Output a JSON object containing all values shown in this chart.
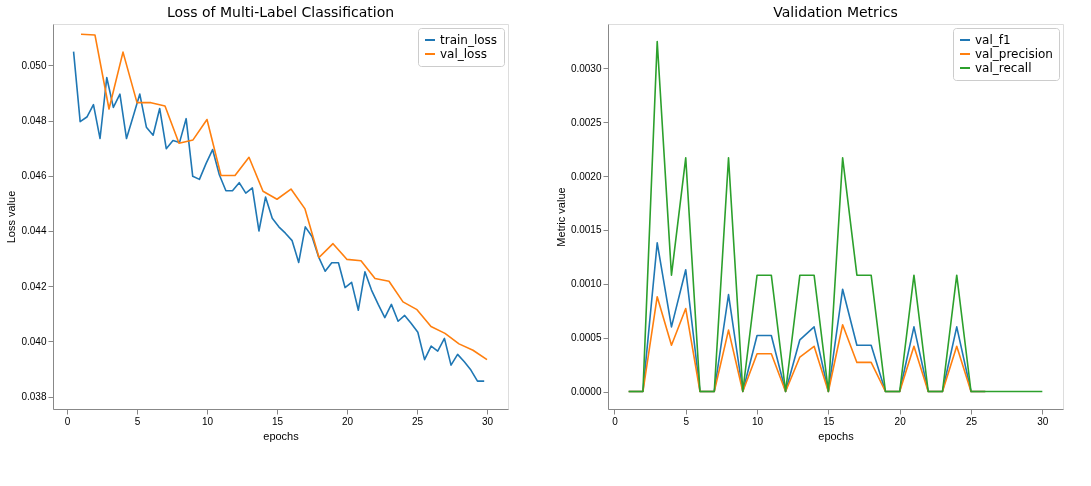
{
  "chart_data": [
    {
      "type": "line",
      "title": "Loss of Multi-Label Classification",
      "xlabel": "epochs",
      "ylabel": "Loss value",
      "xlim": [
        -1.0,
        31.5
      ],
      "xticks": [
        0,
        5,
        10,
        15,
        20,
        25,
        30
      ],
      "ylim": [
        0.03755,
        0.0515
      ],
      "yticks": [
        0.038,
        {
          "value": 0.04,
          "label": "0.040"
        },
        0.042,
        0.044,
        0.046,
        0.048,
        {
          "value": 0.05,
          "label": "0.050"
        }
      ],
      "grid": false,
      "legend": "top right",
      "line_style": "solid",
      "series": [
        {
          "name": "train_loss",
          "color": "#1f77b4",
          "x": [
            0.47,
            0.94,
            1.42,
            1.89,
            2.36,
            2.84,
            3.31,
            3.78,
            4.25,
            4.73,
            5.2,
            5.67,
            6.15,
            6.62,
            7.09,
            7.57,
            8.04,
            8.51,
            8.98,
            9.46,
            9.93,
            10.4,
            10.88,
            11.35,
            11.82,
            12.3,
            12.77,
            13.24,
            13.71,
            14.18,
            14.66,
            15.13,
            15.6,
            16.08,
            16.55,
            17.02,
            17.5,
            17.97,
            18.44,
            18.91,
            19.39,
            19.86,
            20.33,
            20.81,
            21.28,
            21.75,
            22.23,
            22.7,
            23.17,
            23.65,
            24.12,
            24.59,
            25.06,
            25.54,
            26.01,
            26.48,
            26.96,
            27.43,
            27.9,
            28.38,
            28.85,
            29.32,
            29.8
          ],
          "values": [
            0.0505,
            0.04796,
            0.04813,
            0.04858,
            0.04735,
            0.04956,
            0.04848,
            0.04896,
            0.04735,
            0.04816,
            0.04896,
            0.04776,
            0.04747,
            0.04844,
            0.04698,
            0.04728,
            0.04721,
            0.04807,
            0.04598,
            0.04587,
            0.04644,
            0.04695,
            0.04604,
            0.04546,
            0.04546,
            0.04575,
            0.04537,
            0.04556,
            0.044,
            0.04523,
            0.04446,
            0.04415,
            0.04392,
            0.04365,
            0.04286,
            0.04415,
            0.0438,
            0.04306,
            0.04254,
            0.04285,
            0.04285,
            0.04195,
            0.04214,
            0.04113,
            0.04252,
            0.04186,
            0.04134,
            0.04086,
            0.04134,
            0.04073,
            0.04094,
            0.04065,
            0.04033,
            0.03934,
            0.03983,
            0.03965,
            0.04011,
            0.03914,
            0.03953,
            0.03926,
            0.03896,
            0.03856,
            0.03856
          ]
        },
        {
          "name": "val_loss",
          "color": "#ff7f0e",
          "x": [
            1,
            2,
            3,
            4,
            5,
            6,
            7,
            8,
            9,
            10,
            11,
            12,
            13,
            14,
            15,
            16,
            17,
            18,
            19,
            20,
            21,
            22,
            23,
            24,
            25,
            26,
            27,
            28,
            29,
            30
          ],
          "values": [
            0.05113,
            0.0511,
            0.04842,
            0.05048,
            0.04865,
            0.04865,
            0.04853,
            0.04718,
            0.0473,
            0.04804,
            0.04601,
            0.04601,
            0.04667,
            0.04544,
            0.04515,
            0.04552,
            0.0448,
            0.04304,
            0.04354,
            0.04297,
            0.04292,
            0.04228,
            0.04218,
            0.04143,
            0.04115,
            0.04054,
            0.04029,
            0.03991,
            0.03968,
            0.03934
          ]
        }
      ]
    },
    {
      "type": "line",
      "title": "Validation Metrics",
      "xlabel": "epochs",
      "ylabel": "Metric value",
      "xlim": [
        -0.45,
        31.45
      ],
      "xticks": [
        0,
        5,
        10,
        15,
        20,
        25,
        30
      ],
      "ylim": [
        -0.0001625,
        0.0034125
      ],
      "yticks": [
        {
          "value": 0,
          "label": "0.0000"
        },
        0.0005,
        {
          "value": 0.001,
          "label": "0.0010"
        },
        0.0015,
        {
          "value": 0.002,
          "label": "0.0020"
        },
        0.0025,
        {
          "value": 0.003,
          "label": "0.0030"
        }
      ],
      "grid": false,
      "legend": "top right",
      "line_style": "solid",
      "x": [
        1,
        2,
        3,
        4,
        5,
        6,
        7,
        8,
        9,
        10,
        11,
        12,
        13,
        14,
        15,
        16,
        17,
        18,
        19,
        20,
        21,
        22,
        23,
        24,
        25,
        26,
        27,
        28,
        29,
        30
      ],
      "series": [
        {
          "name": "val_f1",
          "color": "#1f77b4",
          "values": [
            0,
            0,
            0.00138,
            0.0006,
            0.00113,
            0,
            0,
            0.0009,
            0,
            0.00052,
            0.00052,
            0,
            0.00048,
            0.0006,
            0,
            0.00095,
            0.00043,
            0.00043,
            0,
            0,
            0.0006,
            0,
            0,
            0.0006,
            0,
            0,
            null,
            null,
            null,
            null
          ]
        },
        {
          "name": "val_precision",
          "color": "#ff7f0e",
          "values": [
            0,
            0,
            0.00088,
            0.00043,
            0.00077,
            0,
            0,
            0.00057,
            0,
            0.00035,
            0.00035,
            0,
            0.00032,
            0.00042,
            0,
            0.00062,
            0.00027,
            0.00027,
            0,
            0,
            0.00042,
            0,
            0,
            0.00042,
            0,
            0,
            null,
            null,
            null,
            null
          ]
        },
        {
          "name": "val_recall",
          "color": "#2ca02c",
          "values": [
            0,
            0,
            0.00325,
            0.00108,
            0.00217,
            0,
            0,
            0.00217,
            0,
            0.00108,
            0.00108,
            0,
            0.00108,
            0.00108,
            0,
            0.00217,
            0.00108,
            0.00108,
            0,
            0,
            0.00108,
            0,
            0,
            0.00108,
            0,
            0,
            0,
            0,
            0,
            0
          ]
        }
      ]
    }
  ]
}
